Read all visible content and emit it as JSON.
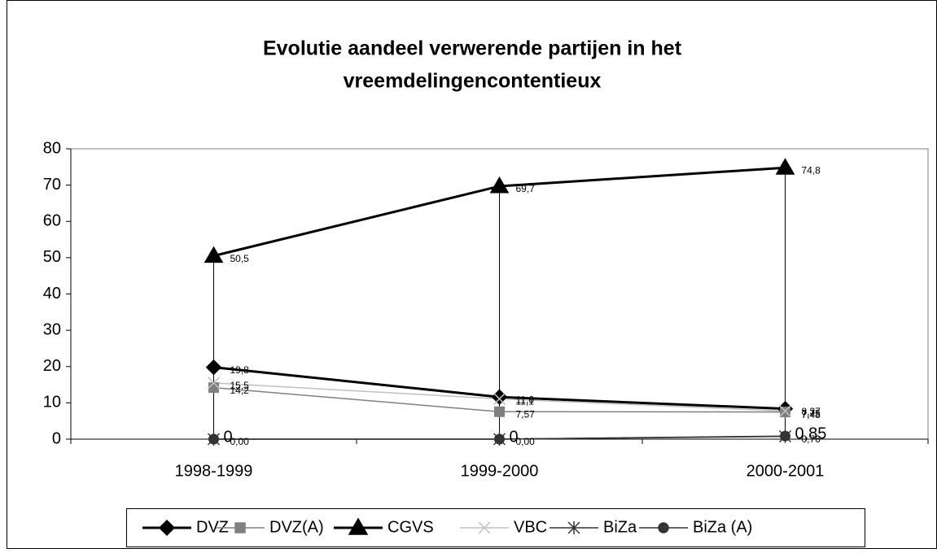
{
  "chart_data": {
    "type": "line",
    "title": "Evolutie aandeel verwerende partijen in het",
    "title_line2": "vreemdelingencontentieux",
    "categories": [
      "1998-1999",
      "1999-2000",
      "2000-2001"
    ],
    "series": [
      {
        "name": "DVZ",
        "color": "#000000",
        "marker": "diamond",
        "values": [
          19.8,
          11.6,
          8.37
        ],
        "value_labels": [
          "19,8",
          "11,6",
          "8,37"
        ]
      },
      {
        "name": "DVZ(A)",
        "color": "#808080",
        "marker": "square",
        "values": [
          14.2,
          7.57,
          7.48
        ],
        "value_labels": [
          "14,2",
          "7,57",
          "7,48"
        ]
      },
      {
        "name": "CGVS",
        "color": "#000000",
        "marker": "triangle",
        "values": [
          50.5,
          69.7,
          74.8
        ],
        "value_labels": [
          "50,5",
          "69,7",
          "74,8"
        ]
      },
      {
        "name": "VBC",
        "color": "#c0c0c0",
        "marker": "x",
        "values": [
          15.5,
          11.1,
          7.75
        ],
        "value_labels": [
          "15,5",
          "11,1",
          "7,75"
        ]
      },
      {
        "name": "BiZa",
        "color": "#333333",
        "marker": "star",
        "values": [
          0,
          0,
          0.76
        ],
        "value_labels": [
          "0,00",
          "0,00",
          "0,76"
        ]
      },
      {
        "name": "BiZa (A)",
        "color": "#333333",
        "marker": "circle",
        "values": [
          0,
          0,
          0.85
        ],
        "value_labels": [
          "0",
          "0",
          "0,85"
        ]
      }
    ],
    "ylim": [
      0,
      80
    ],
    "yticks": [
      0,
      10,
      20,
      30,
      40,
      50,
      60,
      70,
      80
    ],
    "legend": "bottom"
  }
}
